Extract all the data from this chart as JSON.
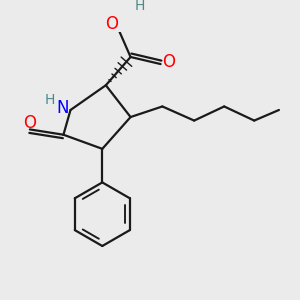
{
  "bg_color": "#ebebeb",
  "bond_color": "#1a1a1a",
  "nitrogen_color": "#0000ff",
  "oxygen_color": "#ff0000",
  "hydrogen_color": "#4a8a8a",
  "line_width": 1.6,
  "figsize": [
    3.0,
    3.0
  ],
  "dpi": 100,
  "xlim": [
    0.0,
    7.5
  ],
  "ylim": [
    -1.5,
    6.0
  ]
}
